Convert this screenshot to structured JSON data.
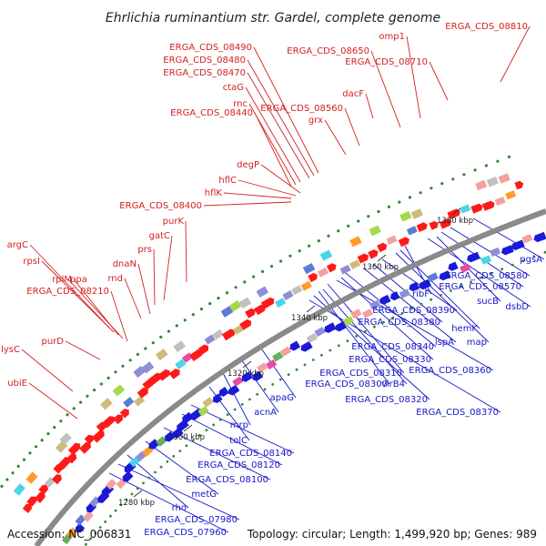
{
  "title": "Ehrlichia ruminantium str. Gardel, complete genome",
  "footer": {
    "accession": "Accession: NC_006831",
    "summary": "Topology: circular; Length: 1,499,920 bp; Genes: 989"
  },
  "colors": {
    "forward_label": "#d42020",
    "reverse_label": "#1515c8",
    "forward_feature": "#ff1a1a",
    "reverse_feature": "#1a1ad8",
    "backbone": "#8a8a8a"
  },
  "ticks": [
    "1280 kbp",
    "1300 kbp",
    "1320 kbp",
    "1340 kbp",
    "1360 kbp",
    "1380 kbp"
  ],
  "forward_genes": [
    "ERGA_CDS_08810",
    "omp1",
    "ERGA_CDS_08650",
    "ERGA_CDS_08710",
    "ERGA_CDS_08490",
    "ERGA_CDS_08480",
    "ERGA_CDS_08470",
    "ctaG",
    "rnc",
    "ERGA_CDS_08440",
    "ERGA_CDS_08560",
    "dacF",
    "grx",
    "degP",
    "hflC",
    "hflK",
    "ERGA_CDS_08400",
    "purK",
    "gatC",
    "prs",
    "dnaN",
    "rnd",
    "argC",
    "rpsI",
    "rplM",
    "ppa",
    "ERGA_CDS_08210",
    "purD",
    "lysC",
    "ubiE"
  ],
  "reverse_genes": [
    "pgsA",
    "ERGA_CDS_08580",
    "ERGA_CDS_08570",
    "sucB",
    "dsbD",
    "ribF",
    "hemK",
    "map",
    "ERGA_CDS_08390",
    "ERGA_CDS_08380",
    "lspA",
    "ERGA_CDS_08340",
    "ERGA_CDS_08330",
    "ERGA_CDS_08360",
    "ERGA_CDS_08310",
    "virB4",
    "ERGA_CDS_08300",
    "ERGA_CDS_08320",
    "ERGA_CDS_08370",
    "apaG",
    "acnA",
    "mrp",
    "tolC",
    "ERGA_CDS_08140",
    "ERGA_CDS_08120",
    "ERGA_CDS_08100",
    "metG",
    "rho",
    "ERGA_CDS_07980",
    "ERGA_CDS_07960"
  ]
}
